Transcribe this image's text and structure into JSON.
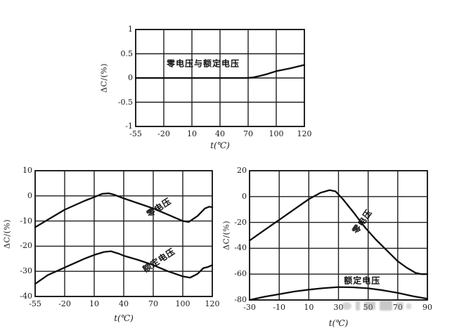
{
  "page": {
    "background": "#ffffff",
    "ink_color": "#111111"
  },
  "chart_data": [
    {
      "id": "top-chart",
      "type": "line",
      "title": "",
      "xlabel": "t(℃)",
      "ylabel": "ΔC/(%)",
      "x_ticks": [
        -55,
        -20,
        10,
        40,
        70,
        100,
        120
      ],
      "y_ticks": [
        1,
        0.5,
        0,
        -0.5,
        -1
      ],
      "ylim": [
        -1,
        1
      ],
      "grid": true,
      "legend_position": "none",
      "series": [
        {
          "key": "zero-and-rated-voltage",
          "name": "零电压与额定电压",
          "points": [
            [
              -55,
              0
            ],
            [
              -20,
              0
            ],
            [
              10,
              0
            ],
            [
              40,
              0
            ],
            [
              68,
              0
            ],
            [
              75,
              0.01
            ],
            [
              82,
              0.04
            ],
            [
              90,
              0.08
            ],
            [
              100,
              0.14
            ],
            [
              110,
              0.2
            ],
            [
              120,
              0.27
            ]
          ]
        }
      ],
      "annotations": [
        {
          "text": "零电压与额定电压",
          "x": 22,
          "y": 0.3,
          "rotate": 0
        }
      ]
    },
    {
      "id": "bottom-left-chart",
      "type": "line",
      "title": "",
      "xlabel": "t(℃)",
      "ylabel": "ΔC/(%)",
      "x_ticks": [
        -55,
        -20,
        10,
        40,
        70,
        100,
        120
      ],
      "y_ticks": [
        10,
        0,
        -10,
        -20,
        -30,
        -40
      ],
      "ylim": [
        -40,
        10
      ],
      "grid": true,
      "legend_position": "none",
      "series": [
        {
          "key": "zero-voltage",
          "name": "零电压",
          "points": [
            [
              -55,
              -12.5
            ],
            [
              -40,
              -9.5
            ],
            [
              -20,
              -5.5
            ],
            [
              0,
              -2
            ],
            [
              10,
              -0.5
            ],
            [
              18,
              0.8
            ],
            [
              25,
              1
            ],
            [
              30,
              0.5
            ],
            [
              40,
              -1
            ],
            [
              55,
              -3
            ],
            [
              70,
              -5
            ],
            [
              85,
              -7.5
            ],
            [
              100,
              -10
            ],
            [
              104,
              -10.4
            ],
            [
              110,
              -8
            ],
            [
              115,
              -5
            ],
            [
              118,
              -4.3
            ],
            [
              120,
              -4.5
            ]
          ]
        },
        {
          "key": "rated-voltage",
          "name": "额定电压",
          "points": [
            [
              -55,
              -35
            ],
            [
              -40,
              -31.5
            ],
            [
              -20,
              -28.5
            ],
            [
              0,
              -25
            ],
            [
              10,
              -23.5
            ],
            [
              20,
              -22.3
            ],
            [
              27,
              -22
            ],
            [
              35,
              -23
            ],
            [
              40,
              -23.8
            ],
            [
              55,
              -25.5
            ],
            [
              70,
              -27.5
            ],
            [
              85,
              -30
            ],
            [
              100,
              -32
            ],
            [
              105,
              -32.5
            ],
            [
              110,
              -31
            ],
            [
              114,
              -28.7
            ],
            [
              117,
              -28.3
            ],
            [
              120,
              -27.5
            ]
          ]
        }
      ],
      "annotations": [
        {
          "text": "零电压",
          "x": 76,
          "y": -4.5,
          "rotate": -33
        },
        {
          "text": "额定电压",
          "x": 76,
          "y": -25.5,
          "rotate": -33
        }
      ]
    },
    {
      "id": "bottom-right-chart",
      "type": "line",
      "title": "",
      "xlabel": "t(℃)",
      "ylabel": "ΔC/(%)",
      "x_ticks": [
        -30,
        -10,
        10,
        30,
        50,
        70,
        90
      ],
      "y_ticks": [
        20,
        0,
        -20,
        -40,
        -60,
        -80
      ],
      "ylim": [
        -80,
        20
      ],
      "grid": true,
      "legend_position": "none",
      "series": [
        {
          "key": "zero-voltage",
          "name": "零电压",
          "points": [
            [
              -30,
              -34
            ],
            [
              -20,
              -26
            ],
            [
              -10,
              -18
            ],
            [
              0,
              -10
            ],
            [
              10,
              -2
            ],
            [
              18,
              3
            ],
            [
              24,
              5
            ],
            [
              28,
              4
            ],
            [
              33,
              -2
            ],
            [
              40,
              -12
            ],
            [
              48,
              -24
            ],
            [
              55,
              -33
            ],
            [
              62,
              -41
            ],
            [
              70,
              -50
            ],
            [
              76,
              -55
            ],
            [
              82,
              -59
            ],
            [
              86,
              -60
            ],
            [
              90,
              -60
            ]
          ]
        },
        {
          "key": "rated-voltage",
          "name": "额定电压",
          "points": [
            [
              -30,
              -80
            ],
            [
              -20,
              -77.5
            ],
            [
              -10,
              -75.5
            ],
            [
              0,
              -73.5
            ],
            [
              10,
              -72
            ],
            [
              20,
              -70.8
            ],
            [
              30,
              -70
            ],
            [
              40,
              -70.2
            ],
            [
              50,
              -71
            ],
            [
              60,
              -72.5
            ],
            [
              70,
              -74.5
            ],
            [
              80,
              -77
            ],
            [
              90,
              -79
            ]
          ]
        }
      ],
      "annotations": [
        {
          "text": "零电压",
          "x": 46,
          "y": -19,
          "rotate": -55
        },
        {
          "text": "额定电压",
          "x": 46,
          "y": -65,
          "rotate": 0
        }
      ]
    }
  ]
}
